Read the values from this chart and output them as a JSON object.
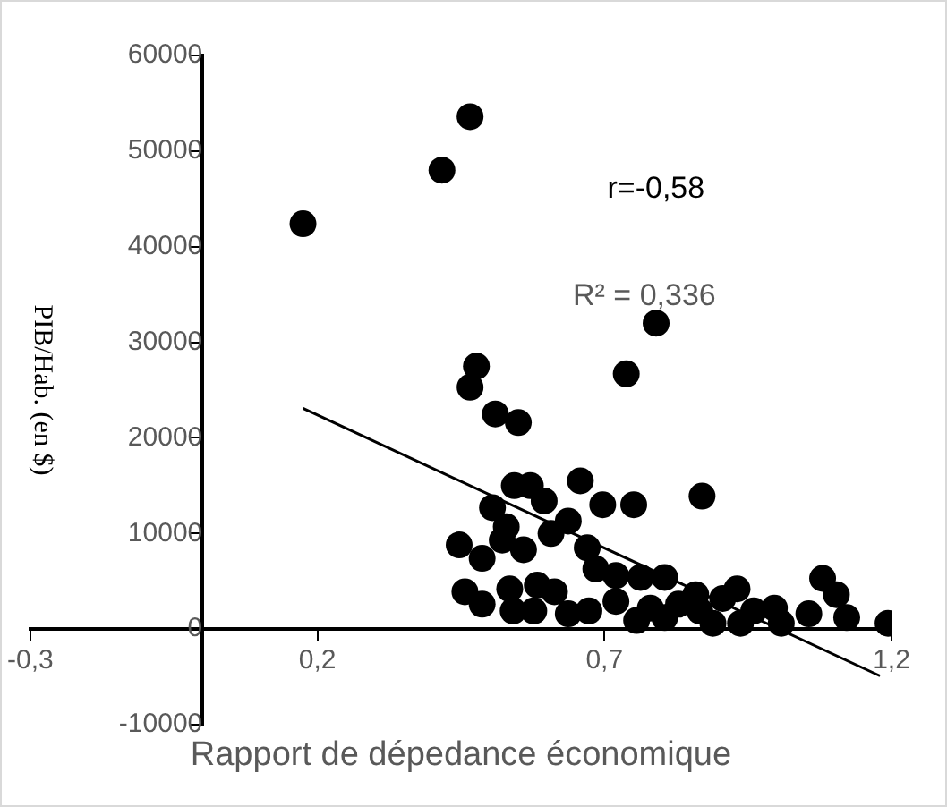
{
  "chart_data": {
    "type": "scatter",
    "xlabel": "Rapport de dépedance économique",
    "ylabel": "PIB/Hab. (en $)",
    "xlim": [
      -0.3,
      1.2
    ],
    "xticks": [
      {
        "value": -0.3,
        "label": "-0,3"
      },
      {
        "value": 0.2,
        "label": "0,2"
      },
      {
        "value": 0.7,
        "label": "0,7"
      },
      {
        "value": 1.2,
        "label": "1,2"
      }
    ],
    "ylim": [
      -10000,
      60000
    ],
    "yticks": [
      -10000,
      0,
      10000,
      20000,
      30000,
      40000,
      50000,
      60000
    ],
    "grid": false,
    "legend": false,
    "marker": "circle",
    "annotations": [
      "r=-0,58",
      "R² = 0,336"
    ],
    "series": [
      {
        "color": "#000000",
        "x": [
          0.466,
          0.417,
          0.175,
          0.79,
          0.738,
          0.477,
          0.466,
          0.499,
          0.51,
          0.55,
          0.447,
          0.487,
          0.505,
          0.543,
          0.571,
          0.595,
          0.529,
          0.559,
          0.522,
          0.607,
          0.637,
          0.658,
          0.697,
          0.751,
          0.87,
          0.67,
          0.685,
          0.72,
          0.763,
          0.805,
          0.457,
          0.487,
          0.541,
          0.577,
          0.583,
          0.535,
          0.613,
          0.637,
          0.673,
          0.72,
          0.756,
          0.805,
          0.829,
          0.859,
          0.889,
          0.906,
          0.931,
          0.937,
          0.96,
          0.996,
          1.008,
          1.056,
          1.08,
          1.104,
          1.122,
          1.194,
          0.866,
          0.78
        ],
        "values": [
          53600,
          48000,
          42400,
          32000,
          26700,
          27500,
          25300,
          null,
          22500,
          21600,
          8800,
          7400,
          12700,
          15000,
          15000,
          13400,
          10700,
          8300,
          9300,
          10000,
          11300,
          15500,
          13000,
          13000,
          13900,
          8500,
          6300,
          5600,
          5400,
          5400,
          3900,
          2600,
          1900,
          1900,
          4600,
          4200,
          3900,
          1600,
          1900,
          2900,
          900,
          1200,
          2600,
          3600,
          600,
          3200,
          4200,
          600,
          1900,
          2200,
          600,
          1600,
          5300,
          3600,
          1200,
          600,
          1900,
          2200
        ]
      },
      {
        "type": "line",
        "color": "#000000",
        "marker": "none",
        "x": [
          0.175,
          1.18
        ],
        "values": [
          23100,
          -4900
        ]
      }
    ]
  }
}
